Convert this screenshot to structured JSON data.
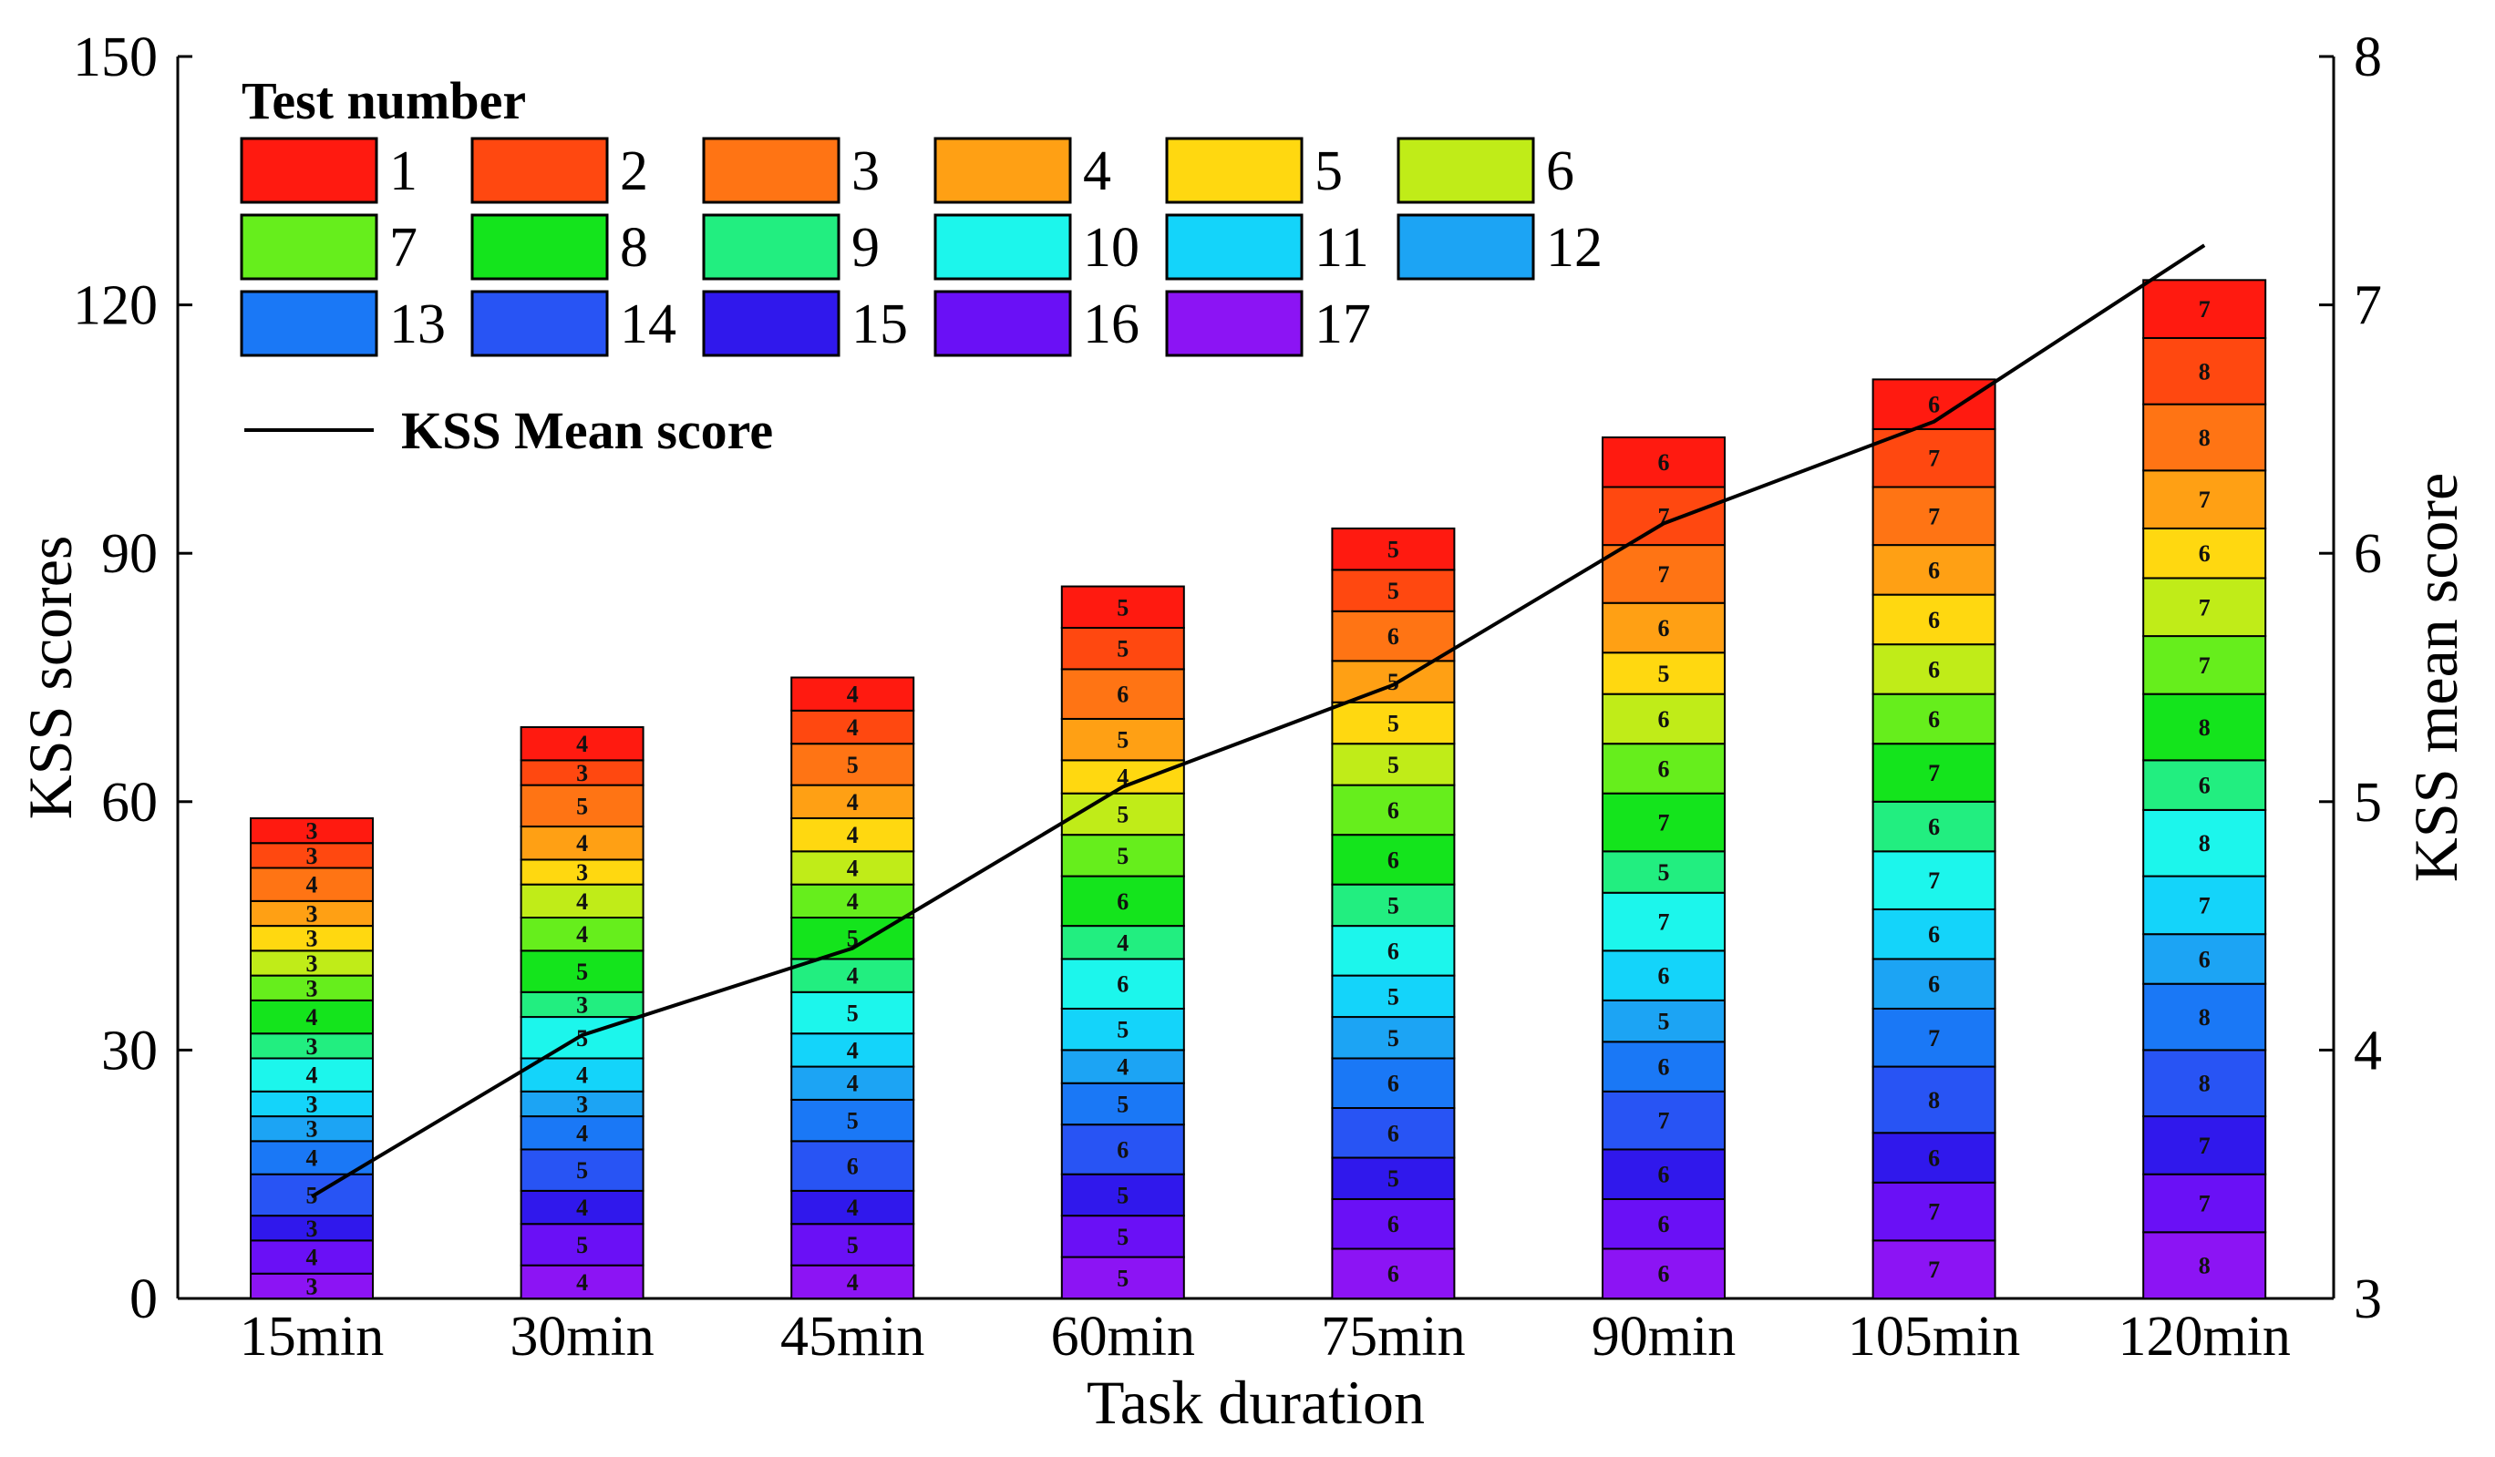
{
  "chart_data": {
    "type": "bar",
    "stacked": true,
    "xlabel": "Task duration",
    "ylabel": "KSS scores",
    "y2label": "KSS mean score",
    "ylim": [
      0,
      150
    ],
    "yticks": [
      0,
      30,
      60,
      90,
      120,
      150
    ],
    "y2lim": [
      3,
      8
    ],
    "y2ticks": [
      3,
      4,
      5,
      6,
      7,
      8
    ],
    "grid": false,
    "legend_position": "top-left",
    "legend_title": "Test number",
    "line_legend_label": "KSS Mean score",
    "categories": [
      "15min",
      "30min",
      "45min",
      "60min",
      "75min",
      "90min",
      "105min",
      "120min"
    ],
    "series": [
      {
        "name": "1",
        "color": "#ff1a10",
        "values": [
          3,
          4,
          4,
          5,
          5,
          6,
          6,
          7
        ]
      },
      {
        "name": "2",
        "color": "#ff4810",
        "values": [
          3,
          3,
          4,
          5,
          5,
          7,
          7,
          8
        ]
      },
      {
        "name": "3",
        "color": "#ff7414",
        "values": [
          4,
          5,
          5,
          6,
          6,
          7,
          7,
          8
        ]
      },
      {
        "name": "4",
        "color": "#ffa014",
        "values": [
          3,
          4,
          4,
          5,
          5,
          6,
          6,
          7
        ]
      },
      {
        "name": "5",
        "color": "#ffd810",
        "values": [
          3,
          3,
          4,
          4,
          5,
          5,
          6,
          6
        ]
      },
      {
        "name": "6",
        "color": "#c0ec18",
        "values": [
          3,
          4,
          4,
          5,
          5,
          6,
          6,
          7
        ]
      },
      {
        "name": "7",
        "color": "#66ee1c",
        "values": [
          3,
          4,
          4,
          5,
          6,
          6,
          6,
          7
        ]
      },
      {
        "name": "8",
        "color": "#14e41c",
        "values": [
          4,
          5,
          5,
          6,
          6,
          7,
          7,
          8
        ]
      },
      {
        "name": "9",
        "color": "#22ee80",
        "values": [
          3,
          3,
          4,
          4,
          5,
          5,
          6,
          6
        ]
      },
      {
        "name": "10",
        "color": "#1cf6ec",
        "values": [
          4,
          5,
          5,
          6,
          6,
          7,
          7,
          8
        ]
      },
      {
        "name": "11",
        "color": "#14d4fa",
        "values": [
          3,
          4,
          4,
          5,
          5,
          6,
          6,
          7
        ]
      },
      {
        "name": "12",
        "color": "#1ca4f4",
        "values": [
          3,
          3,
          4,
          4,
          5,
          5,
          6,
          6
        ]
      },
      {
        "name": "13",
        "color": "#1a78f6",
        "values": [
          4,
          4,
          5,
          5,
          6,
          6,
          7,
          8
        ]
      },
      {
        "name": "14",
        "color": "#2854f4",
        "values": [
          5,
          5,
          6,
          6,
          6,
          7,
          8,
          8
        ]
      },
      {
        "name": "15",
        "color": "#3018ec",
        "values": [
          3,
          4,
          4,
          5,
          5,
          6,
          6,
          7
        ]
      },
      {
        "name": "16",
        "color": "#6a10f6",
        "values": [
          4,
          5,
          5,
          5,
          6,
          6,
          7,
          7
        ]
      },
      {
        "name": "17",
        "color": "#8c14f4",
        "values": [
          3,
          4,
          4,
          5,
          6,
          6,
          7,
          8
        ]
      }
    ],
    "line_series": {
      "name": "KSS Mean score",
      "axis": "right",
      "values": [
        3.41,
        4.06,
        4.41,
        5.06,
        5.47,
        6.12,
        6.53,
        7.24
      ]
    }
  }
}
